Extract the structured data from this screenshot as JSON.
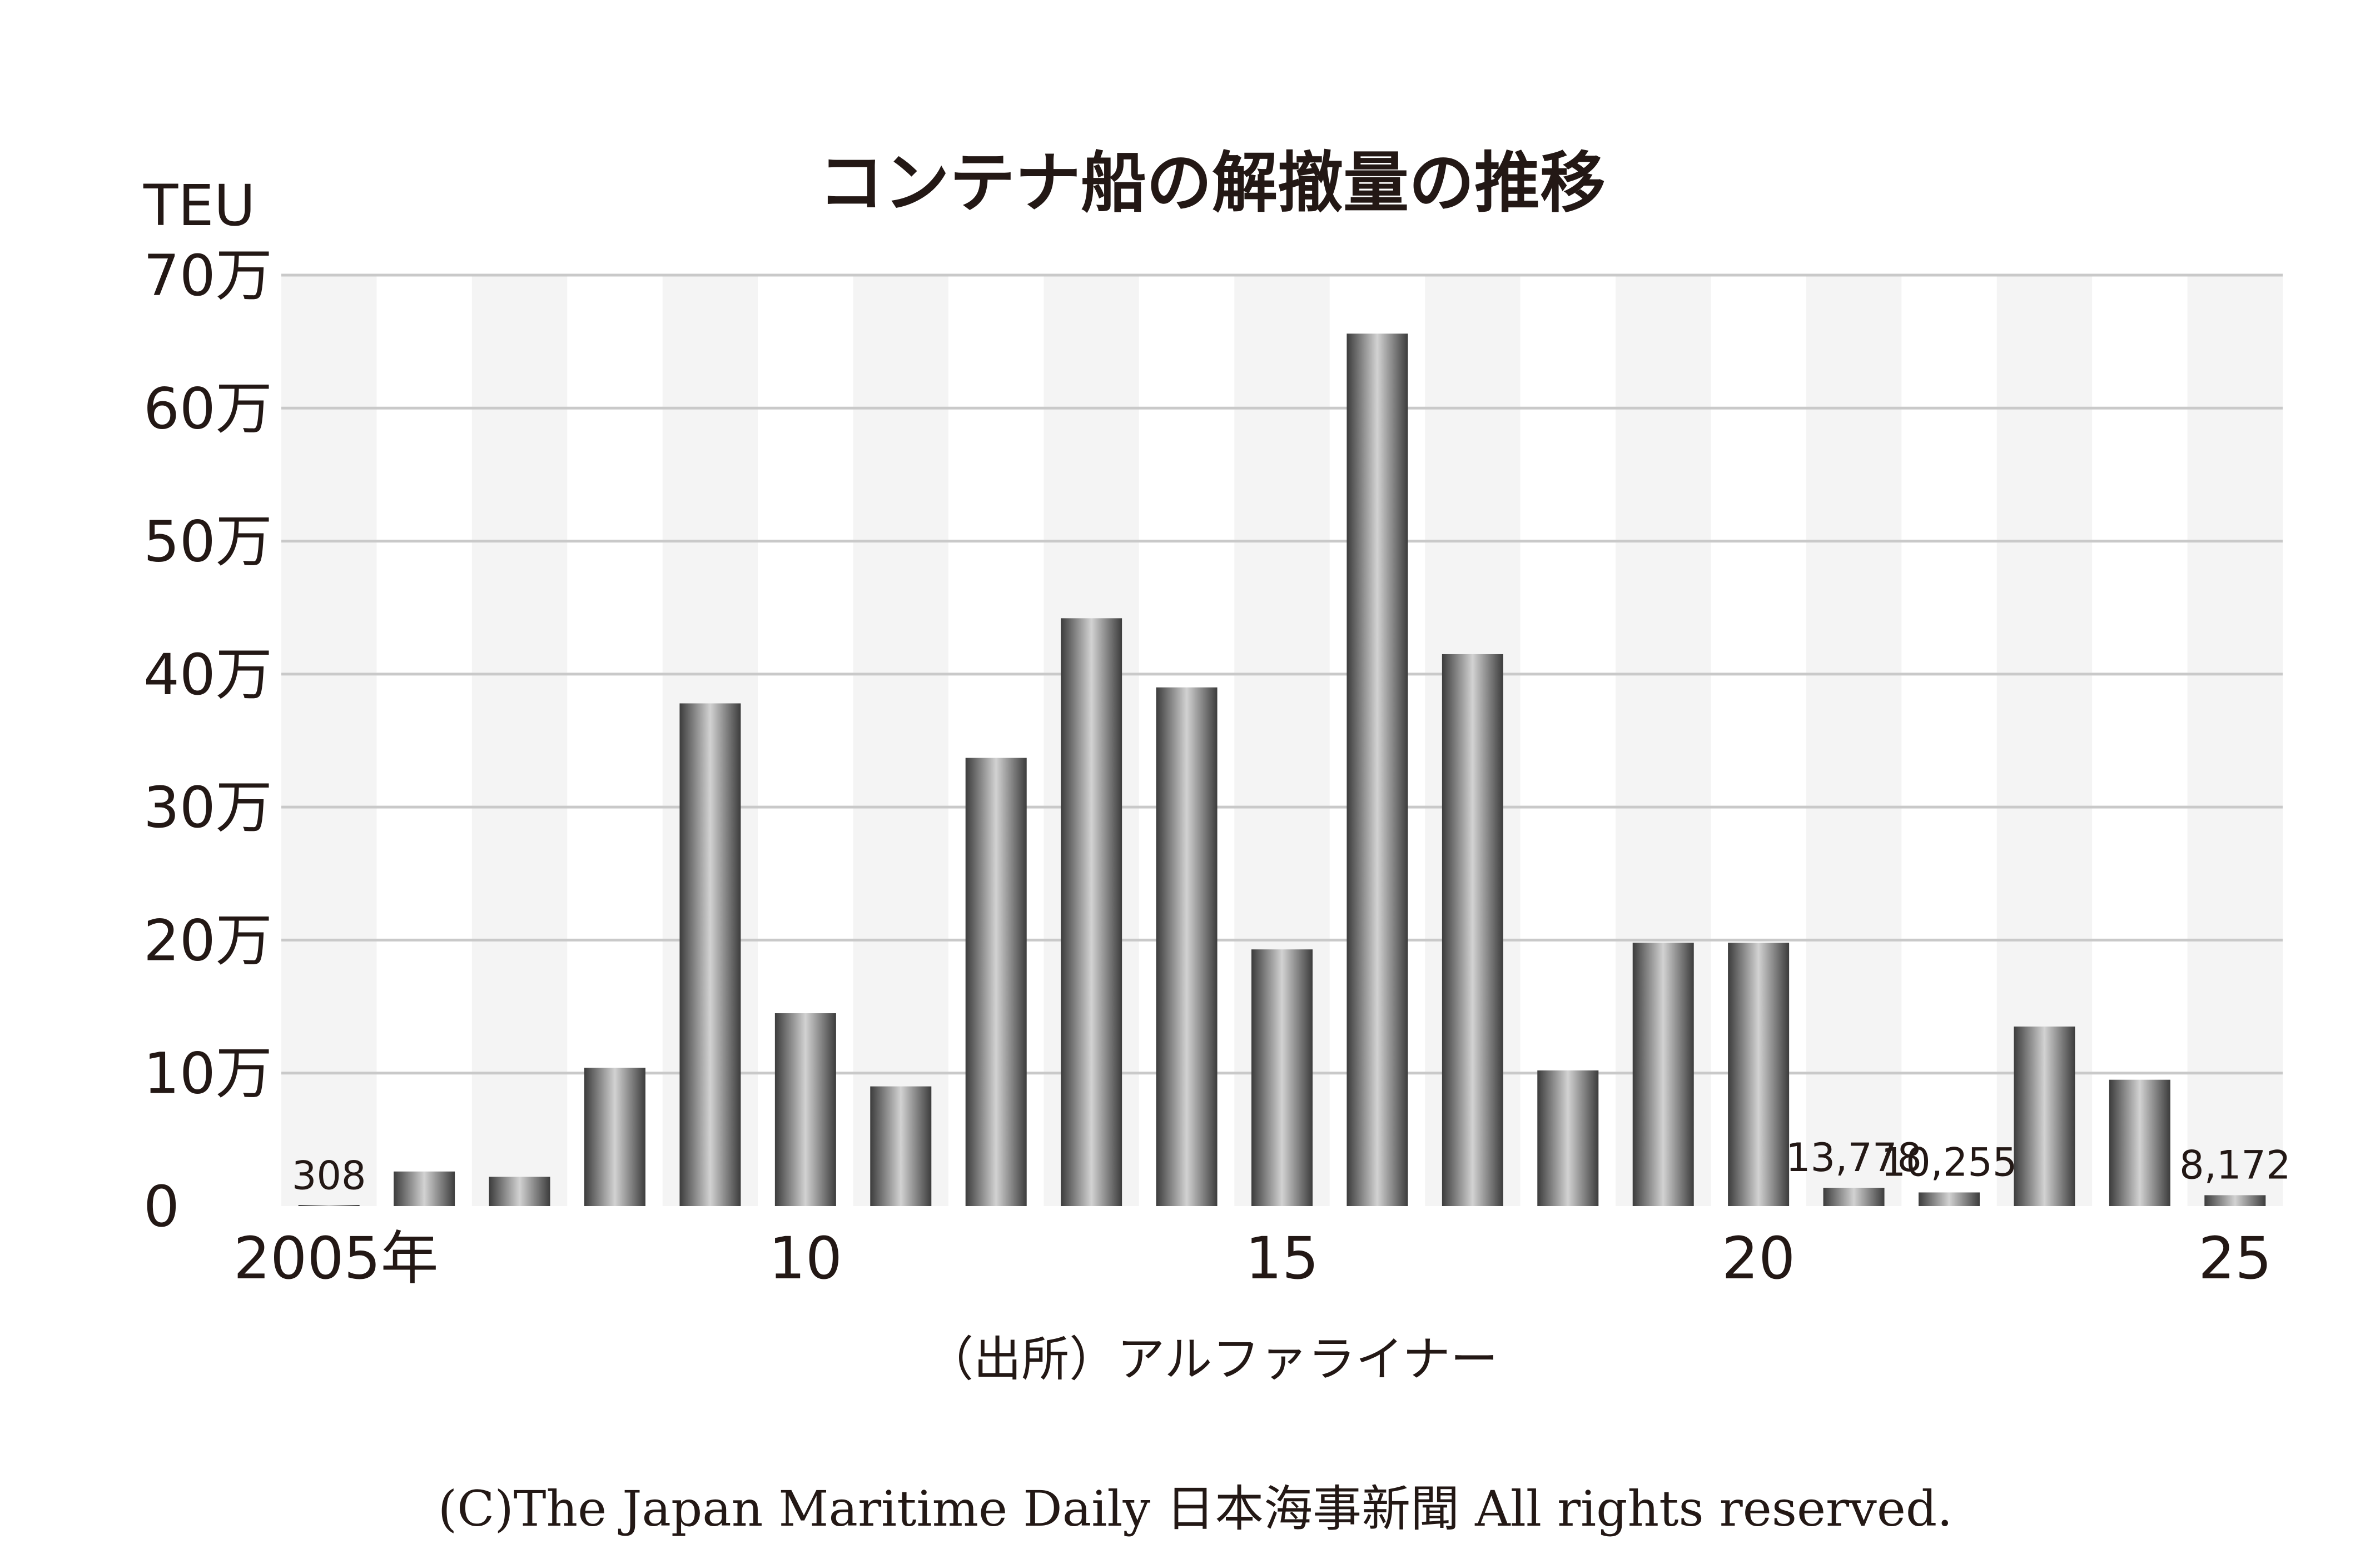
{
  "chart_data": {
    "type": "bar",
    "title": "コンテナ船の解撤量の推移",
    "y_unit": "TEU",
    "ylim": [
      0,
      700000
    ],
    "y_ticks": [
      {
        "value": 0,
        "label": "0"
      },
      {
        "value": 100000,
        "label": "10万"
      },
      {
        "value": 200000,
        "label": "20万"
      },
      {
        "value": 300000,
        "label": "30万"
      },
      {
        "value": 400000,
        "label": "40万"
      },
      {
        "value": 500000,
        "label": "50万"
      },
      {
        "value": 600000,
        "label": "60万"
      },
      {
        "value": 700000,
        "label": "70万"
      }
    ],
    "categories": [
      2005,
      2006,
      2007,
      2008,
      2009,
      2010,
      2011,
      2012,
      2013,
      2014,
      2015,
      2016,
      2017,
      2018,
      2019,
      2020,
      2021,
      2022,
      2023,
      2024,
      2025
    ],
    "values": [
      308,
      26000,
      22000,
      104000,
      378000,
      145000,
      90000,
      337000,
      442000,
      390000,
      193000,
      656000,
      415000,
      102000,
      198000,
      198000,
      13778,
      10255,
      135000,
      95000,
      8172
    ],
    "x_tick_labels": [
      {
        "index": 0,
        "label": "2005年"
      },
      {
        "index": 5,
        "label": "10"
      },
      {
        "index": 10,
        "label": "15"
      },
      {
        "index": 15,
        "label": "20"
      },
      {
        "index": 20,
        "label": "25"
      }
    ],
    "data_labels": [
      {
        "index": 0,
        "label": "308"
      },
      {
        "index": 16,
        "label": "13,778"
      },
      {
        "index": 17,
        "label": "10,255"
      },
      {
        "index": 20,
        "label": "8,172"
      }
    ],
    "grid": true,
    "legend": "none"
  },
  "source": "（出所）アルファライナー",
  "copyright": "(C)The Japan Maritime Daily 日本海事新聞 All rights reserved.",
  "colors": {
    "bar_dark": "#4a4a4a",
    "bar_light": "#cfcfcf",
    "stripe": "#f4f4f4",
    "grid": "#c9c9c9",
    "text": "#231815"
  }
}
